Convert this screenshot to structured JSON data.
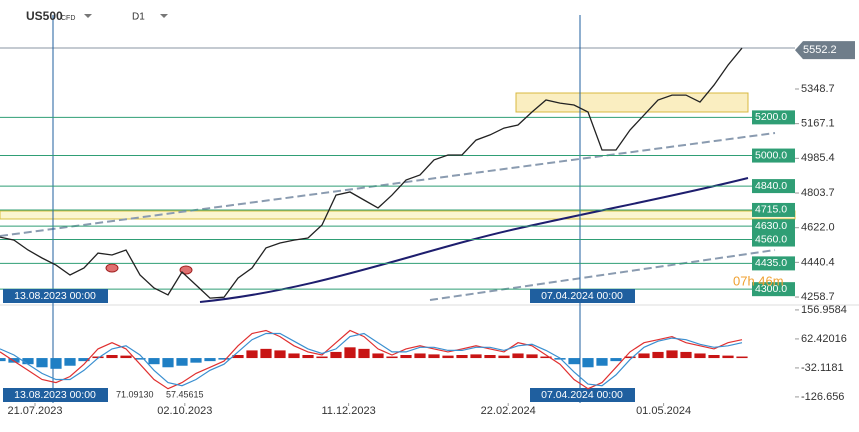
{
  "symbol": "US500",
  "instrument_type": "CFD",
  "timeframe": "D1",
  "chart_data": [
    {
      "type": "line",
      "color": "#222222",
      "values": [
        4573,
        4557,
        4505,
        4463,
        4426,
        4374,
        4411,
        4489,
        4479,
        4505,
        4374,
        4306,
        4270,
        4390,
        4322,
        4253,
        4258,
        4358,
        4411,
        4516,
        4542,
        4557,
        4568,
        4636,
        4793,
        4809,
        4767,
        4725,
        4793,
        4872,
        4898,
        4977,
        5003,
        5003,
        5081,
        5108,
        5144,
        5160,
        5228,
        5291,
        5275,
        5265,
        5228,
        5029,
        5029,
        5134,
        5212,
        5291,
        5317,
        5317,
        5280,
        5369,
        5474,
        5563
      ],
      "xlim": [
        0,
        53
      ],
      "xticks": [
        {
          "value": 2.5,
          "label": "21.07.2023"
        },
        {
          "value": 13.2,
          "label": "02.10.2023"
        },
        {
          "value": 24.9,
          "label": "11.12.2023"
        },
        {
          "value": 36.3,
          "label": "22.02.2024"
        },
        {
          "value": 47.4,
          "label": "01.05.2024"
        }
      ],
      "ylim": [
        4217,
        5815
      ],
      "yticks": [
        5348.7,
        5167.1,
        4985.4,
        4803.7,
        {
          "value": 4622,
          "label": "4622.0"
        },
        4440.4,
        4258.7
      ],
      "last_value": 5552.2,
      "levels": [
        {
          "value": 5200,
          "label": "5200.0"
        },
        {
          "value": 5000,
          "label": "5000.0"
        },
        {
          "value": 4840,
          "label": "4840.0"
        },
        {
          "value": 4715,
          "label": "4715.0"
        },
        {
          "value": 4630,
          "label": "4630.0"
        },
        {
          "value": 4560,
          "label": "4560.0"
        },
        {
          "value": 4435,
          "label": "4435.0"
        },
        {
          "value": 4300,
          "label": "4300.0"
        }
      ],
      "level_color": "#2f9e75",
      "crosshair_labels": [
        "13.08.2023 00:00",
        "07.04.2024 00:00"
      ],
      "countdown": "07h 46m"
    },
    {
      "type": "bar",
      "positive_color": "#c81414",
      "negative_color": "#1f7fc4",
      "values": [
        -10,
        -15,
        -20,
        -30,
        -35,
        -25,
        -10,
        5,
        10,
        8,
        -5,
        -20,
        -30,
        -25,
        -15,
        -10,
        -5,
        10,
        25,
        30,
        25,
        15,
        10,
        5,
        20,
        35,
        30,
        15,
        5,
        10,
        15,
        12,
        8,
        10,
        12,
        10,
        8,
        15,
        12,
        5,
        -5,
        -20,
        -30,
        -25,
        -10,
        5,
        15,
        20,
        25,
        20,
        15,
        10,
        8,
        5
      ],
      "series": [
        {
          "color": "#e03030",
          "values": [
            20,
            -10,
            -40,
            -70,
            -80,
            -60,
            -20,
            30,
            50,
            30,
            -20,
            -70,
            -100,
            -80,
            -50,
            -30,
            -10,
            40,
            80,
            90,
            70,
            40,
            20,
            10,
            50,
            90,
            70,
            30,
            10,
            30,
            40,
            30,
            20,
            30,
            40,
            30,
            20,
            50,
            40,
            10,
            -20,
            -70,
            -100,
            -80,
            -30,
            20,
            50,
            60,
            70,
            50,
            40,
            30,
            50,
            60
          ]
        },
        {
          "color": "#3a8fd0",
          "values": [
            30,
            10,
            -20,
            -50,
            -70,
            -70,
            -40,
            0,
            30,
            40,
            10,
            -40,
            -80,
            -90,
            -70,
            -40,
            -20,
            20,
            60,
            80,
            80,
            55,
            30,
            15,
            30,
            70,
            80,
            50,
            20,
            20,
            35,
            35,
            25,
            25,
            35,
            35,
            25,
            40,
            45,
            25,
            0,
            -45,
            -85,
            -90,
            -55,
            -5,
            35,
            55,
            65,
            60,
            45,
            35,
            40,
            50
          ]
        }
      ],
      "xlim": [
        0,
        53
      ],
      "ylim": [
        -146.5,
        173
      ],
      "yticks": [
        156.9584,
        62.42016,
        -32.1181,
        -126.656
      ],
      "indicator_values": [
        "71.09130",
        "57.45615"
      ]
    }
  ]
}
